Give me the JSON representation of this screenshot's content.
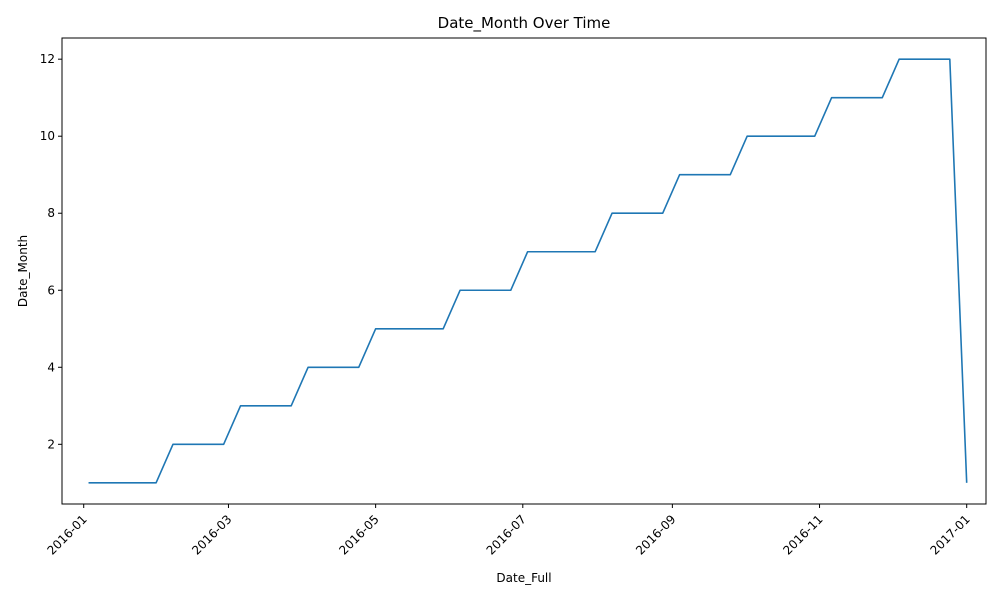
{
  "chart_data": {
    "type": "line",
    "title": "Date_Month Over Time",
    "xlabel": "Date_Full",
    "ylabel": "Date_Month",
    "grid": false,
    "line_color": "#1f77b4",
    "x_tick_labels": [
      "2016-01",
      "2016-03",
      "2016-05",
      "2016-07",
      "2016-09",
      "2016-11",
      "2017-01"
    ],
    "y_tick_labels": [
      "2",
      "4",
      "6",
      "8",
      "10",
      "12"
    ],
    "y_ticks": [
      2,
      4,
      6,
      8,
      10,
      12
    ],
    "xlim": [
      "2015-12-23",
      "2017-01-09"
    ],
    "ylim": [
      0.45,
      12.55
    ],
    "series": [
      {
        "x": [
          "2016-01-03",
          "2016-01-10",
          "2016-01-17",
          "2016-01-24",
          "2016-01-31",
          "2016-02-07",
          "2016-02-14",
          "2016-02-21",
          "2016-02-28",
          "2016-03-06",
          "2016-03-13",
          "2016-03-20",
          "2016-03-27",
          "2016-04-03",
          "2016-04-10",
          "2016-04-17",
          "2016-04-24",
          "2016-05-01",
          "2016-05-08",
          "2016-05-15",
          "2016-05-22",
          "2016-05-29",
          "2016-06-05",
          "2016-06-12",
          "2016-06-19",
          "2016-06-26",
          "2016-07-03",
          "2016-07-10",
          "2016-07-17",
          "2016-07-24",
          "2016-07-31",
          "2016-08-07",
          "2016-08-14",
          "2016-08-21",
          "2016-08-28",
          "2016-09-04",
          "2016-09-11",
          "2016-09-18",
          "2016-09-25",
          "2016-10-02",
          "2016-10-09",
          "2016-10-16",
          "2016-10-23",
          "2016-10-30",
          "2016-11-06",
          "2016-11-13",
          "2016-11-20",
          "2016-11-27",
          "2016-12-04",
          "2016-12-11",
          "2016-12-18",
          "2016-12-25",
          "2017-01-01"
        ],
        "values": [
          1,
          1,
          1,
          1,
          1,
          2,
          2,
          2,
          2,
          3,
          3,
          3,
          3,
          4,
          4,
          4,
          4,
          5,
          5,
          5,
          5,
          5,
          6,
          6,
          6,
          6,
          7,
          7,
          7,
          7,
          7,
          8,
          8,
          8,
          8,
          9,
          9,
          9,
          9,
          10,
          10,
          10,
          10,
          10,
          11,
          11,
          11,
          11,
          12,
          12,
          12,
          12,
          1
        ]
      }
    ]
  }
}
